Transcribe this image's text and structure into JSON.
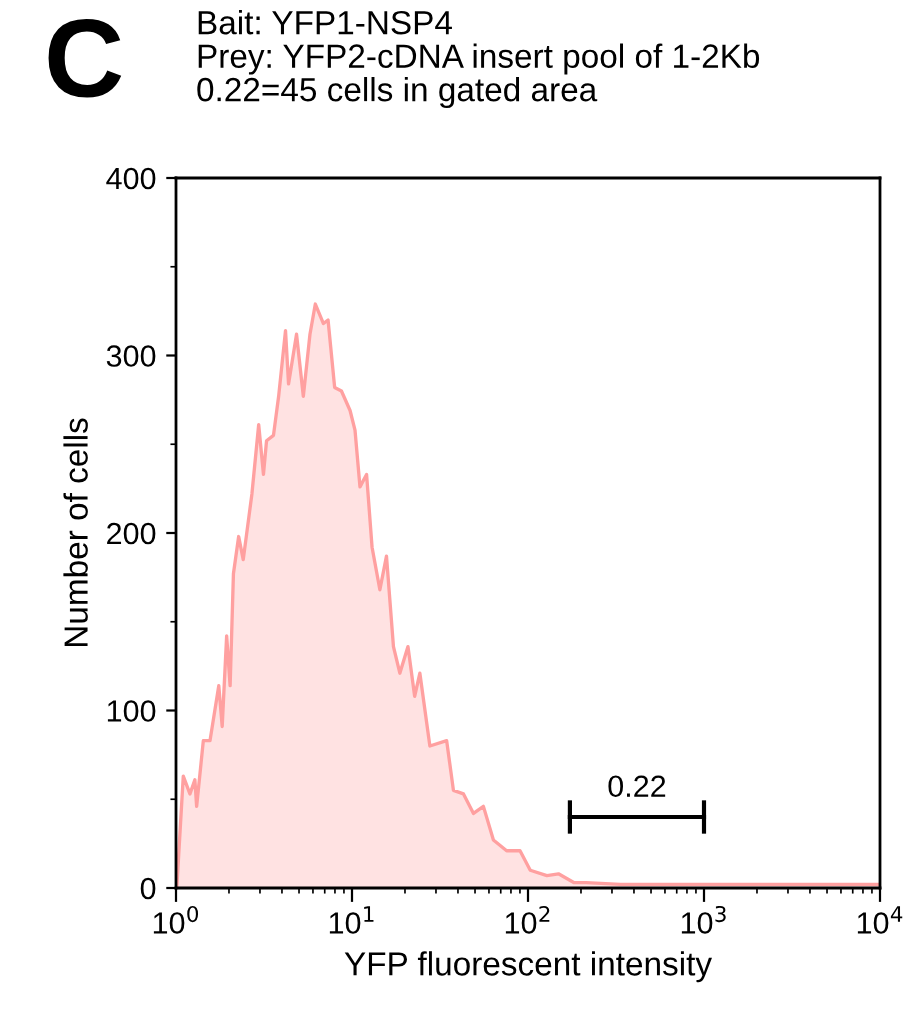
{
  "chart_data": {
    "type": "area",
    "title": "Bait: YFP1-NSP4",
    "subtitle": "Prey: YFP2-cDNA insert pool of 1-2Kb\n0.22=45 cells in gated area",
    "annotations": [
      "C",
      {
        "text": "0.22",
        "x": 416,
        "y": 40
      }
    ],
    "xlabel": "YFP fluorescent intensity",
    "ylabel": "Number of cells",
    "log": "x",
    "xlim": [
      1,
      10000
    ],
    "xticks": [
      {
        "value": 1,
        "label": "10$^{0}$"
      },
      {
        "value": 10,
        "label": "10$^{1}$"
      },
      {
        "value": 100,
        "label": "10$^{2}$"
      },
      {
        "value": 1000,
        "label": "10$^{3}$"
      },
      {
        "value": 10000,
        "label": "10$^{4}$"
      }
    ],
    "ylim": [
      0,
      400
    ],
    "yticks": [
      0,
      100,
      200,
      300,
      400
    ],
    "grid": false,
    "series": [
      {
        "type": "line",
        "color": "#000000",
        "x": [
          173,
          1000
        ],
        "values": [
          40,
          40
        ]
      },
      {
        "color": "#ffa0a0",
        "x": [
          1.01,
          1.1,
          1.2,
          1.28,
          1.31,
          1.43,
          1.56,
          1.75,
          1.83,
          1.94,
          2.03,
          2.12,
          2.27,
          2.41,
          2.7,
          2.95,
          3.14,
          3.27,
          3.58,
          3.83,
          4.19,
          4.36,
          4.84,
          5.29,
          5.77,
          6.19,
          6.88,
          7.31,
          7.97,
          8.71,
          9.75,
          10.4,
          11.1,
          12.1,
          13.0,
          14.4,
          15.7,
          17.2,
          18.7,
          20.8,
          22.7,
          24.3,
          27.7,
          34.5,
          37.7,
          43.0,
          49.0,
          55.8,
          63.6,
          75.6,
          90.1,
          103,
          128,
          149,
          183,
          214,
          334,
          10000
        ],
        "values": [
          0,
          63,
          53,
          61,
          46,
          83,
          83,
          114,
          91,
          142,
          114,
          177,
          198,
          185,
          222,
          261,
          233,
          252,
          255,
          277,
          314,
          284,
          312,
          277,
          312,
          329,
          318,
          320,
          282,
          280,
          269,
          258,
          226,
          233,
          192,
          168,
          187,
          136,
          121,
          136,
          108,
          121,
          80,
          83,
          55,
          53,
          42,
          46,
          27,
          21,
          21,
          10,
          7,
          8,
          3,
          3,
          2,
          2
        ]
      }
    ]
  }
}
